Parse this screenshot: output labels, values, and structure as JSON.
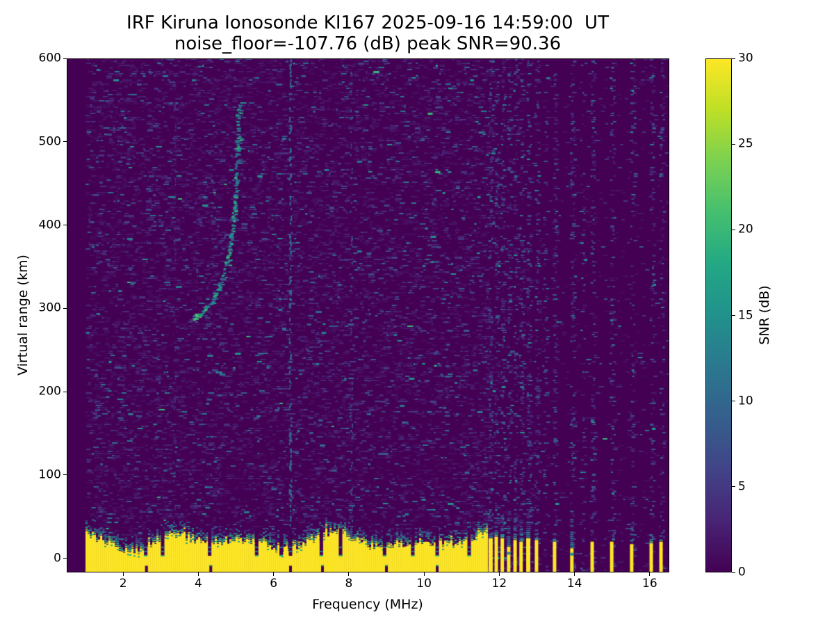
{
  "title": {
    "line1": "IRF Kiruna Ionosonde KI167 2025-09-16 14:59:00  UT",
    "line2": "noise_floor=-107.76 (dB) peak SNR=90.36"
  },
  "axes": {
    "xlabel": "Frequency (MHz)",
    "ylabel": "Virtual range (km)"
  },
  "colorbar": {
    "label": "SNR (dB)",
    "ticks": [
      0,
      5,
      10,
      15,
      20,
      25,
      30
    ],
    "range": [
      0,
      30
    ],
    "colormap": "viridis",
    "stops": [
      [
        "#440154",
        0
      ],
      [
        "#482475",
        0.1
      ],
      [
        "#414487",
        0.2
      ],
      [
        "#355f8d",
        0.3
      ],
      [
        "#2a788e",
        0.4
      ],
      [
        "#21918c",
        0.5
      ],
      [
        "#22a884",
        0.6
      ],
      [
        "#44bf70",
        0.7
      ],
      [
        "#7ad151",
        0.8
      ],
      [
        "#bddf26",
        0.9
      ],
      [
        "#fde725",
        1.0
      ]
    ]
  },
  "chart_data": {
    "type": "heatmap",
    "station": "KI167",
    "timestamp_ut": "2025-09-16 14:59:00",
    "noise_floor_db": -107.76,
    "peak_snr_db": 90.36,
    "x": {
      "label": "Frequency (MHz)",
      "range": [
        0.5,
        16.52
      ],
      "ticks": [
        2,
        4,
        6,
        8,
        10,
        12,
        14,
        16
      ]
    },
    "y": {
      "label": "Virtual range (km)",
      "range": [
        -17,
        600
      ],
      "ticks": [
        0,
        100,
        200,
        300,
        400,
        500,
        600
      ]
    },
    "z": {
      "label": "SNR (dB)",
      "range": [
        0,
        30
      ],
      "colormap": "viridis"
    },
    "background": "#440154",
    "clutter_color": "#fde725",
    "data_start_mhz": 1.0,
    "noise": {
      "stripe_region_start_mhz": 11.68,
      "left_count": 10000,
      "right_count": 800,
      "speckle_palette": [
        [
          "#470d60",
          0.4
        ],
        [
          "#48186a",
          0.22
        ],
        [
          "#482475",
          0.14
        ],
        [
          "#46327e",
          0.09
        ],
        [
          "#414487",
          0.07
        ],
        [
          "#375a8c",
          0.04
        ],
        [
          "#2e6e8e",
          0.02
        ],
        [
          "#2a788e",
          0.012
        ],
        [
          "#21918c",
          0.006
        ],
        [
          "#35b779",
          0.002
        ]
      ],
      "stripe_palette": [
        [
          "#481a6c",
          0.3
        ],
        [
          "#472a7a",
          0.25
        ],
        [
          "#414487",
          0.2
        ],
        [
          "#3b528b",
          0.12
        ],
        [
          "#355f8d",
          0.07
        ],
        [
          "#2a788e",
          0.04
        ],
        [
          "#21918c",
          0.02
        ]
      ],
      "trace_palette": [
        [
          "#2a788e",
          0.3
        ],
        [
          "#21918c",
          0.3
        ],
        [
          "#1fa187",
          0.15
        ],
        [
          "#35b779",
          0.12
        ],
        [
          "#355f8d",
          0.13
        ]
      ],
      "fringe_palettes": [
        [
          [
            "#c2df23",
            0.25
          ],
          [
            "#7ad151",
            0.45
          ],
          [
            "#4ac16d",
            0.3
          ]
        ],
        [
          [
            "#4ac16d",
            0.3
          ],
          [
            "#22a884",
            0.5
          ],
          [
            "#2a788e",
            0.2
          ]
        ],
        [
          [
            "#21918c",
            0.45
          ],
          [
            "#2a788e",
            0.4
          ],
          [
            "#355f8d",
            0.15
          ]
        ],
        [
          [
            "#31688e",
            0.5
          ],
          [
            "#3b528b",
            0.3
          ],
          [
            "#472d7b",
            0.2
          ]
        ]
      ]
    },
    "clutter_band": {
      "f_start": 1.0,
      "f_end": 11.66,
      "top_km_min": 8,
      "top_km_max": 32,
      "fringe_km": 18,
      "notches_mhz": [
        2.6,
        3.05,
        4.3,
        5.55,
        6.2,
        6.45,
        7.27,
        7.78,
        8.95,
        9.7,
        10.35,
        11.2
      ],
      "bottom_gaps_mhz": [
        2.62,
        4.33,
        6.45,
        7.3,
        9.0,
        10.35
      ]
    },
    "echo_trace": {
      "name": "F-layer echo trace",
      "points": [
        [
          3.88,
          287
        ],
        [
          4.02,
          292
        ],
        [
          4.16,
          298
        ],
        [
          4.3,
          306
        ],
        [
          4.44,
          316
        ],
        [
          4.56,
          328
        ],
        [
          4.67,
          342
        ],
        [
          4.77,
          358
        ],
        [
          4.85,
          378
        ],
        [
          4.92,
          402
        ],
        [
          4.97,
          430
        ],
        [
          5.01,
          462
        ],
        [
          5.04,
          496
        ],
        [
          5.06,
          528
        ],
        [
          5.07,
          548
        ]
      ],
      "bright_spots": [
        [
          3.9,
          289
        ],
        [
          3.96,
          292
        ]
      ]
    },
    "rfi_bars": [
      {
        "f": 11.77,
        "yellow_km": 24,
        "cap_km": 34,
        "w": 6
      },
      {
        "f": 11.92,
        "yellow_km": 26,
        "cap_km": 42,
        "w": 5
      },
      {
        "f": 12.08,
        "yellow_km": 24,
        "cap_km": 50,
        "w": 5
      },
      {
        "f": 12.25,
        "yellow_km": 14,
        "cap_km": 55,
        "w": 5,
        "broken": true
      },
      {
        "f": 12.42,
        "yellow_km": 22,
        "cap_km": 60,
        "w": 5
      },
      {
        "f": 12.58,
        "yellow_km": 20,
        "cap_km": 36,
        "w": 5
      },
      {
        "f": 12.77,
        "yellow_km": 24,
        "cap_km": 70,
        "w": 6
      },
      {
        "f": 12.99,
        "yellow_km": 22,
        "cap_km": 44,
        "w": 5
      },
      {
        "f": 13.47,
        "yellow_km": 20,
        "cap_km": 30,
        "w": 5
      },
      {
        "f": 13.93,
        "yellow_km": 12,
        "cap_km": 55,
        "w": 5,
        "broken": true
      },
      {
        "f": 14.47,
        "yellow_km": 20,
        "cap_km": 26,
        "w": 5
      },
      {
        "f": 14.99,
        "yellow_km": 20,
        "cap_km": 22,
        "w": 5
      },
      {
        "f": 15.52,
        "yellow_km": 17,
        "cap_km": 28,
        "w": 5
      },
      {
        "f": 16.04,
        "yellow_km": 18,
        "cap_km": 24,
        "w": 5
      },
      {
        "f": 16.3,
        "yellow_km": 20,
        "cap_km": 30,
        "w": 5
      }
    ],
    "rfi_stripes": [
      {
        "f": 11.7,
        "n": 90
      },
      {
        "f": 11.77,
        "n": 150
      },
      {
        "f": 11.92,
        "n": 150
      },
      {
        "f": 12.08,
        "n": 150
      },
      {
        "f": 12.25,
        "n": 140
      },
      {
        "f": 12.42,
        "n": 140
      },
      {
        "f": 12.58,
        "n": 140
      },
      {
        "f": 12.77,
        "n": 160
      },
      {
        "f": 12.99,
        "n": 140
      },
      {
        "f": 13.2,
        "n": 70
      },
      {
        "f": 13.47,
        "n": 130
      },
      {
        "f": 13.93,
        "n": 130
      },
      {
        "f": 14.2,
        "n": 60
      },
      {
        "f": 14.47,
        "n": 120
      },
      {
        "f": 14.99,
        "n": 120
      },
      {
        "f": 15.52,
        "n": 110
      },
      {
        "f": 16.04,
        "n": 110
      },
      {
        "f": 16.3,
        "n": 100
      }
    ],
    "faint_stripes": [
      {
        "f": 6.43,
        "n": 200,
        "c": "#2e6e8e"
      },
      {
        "f": 8.05,
        "n": 70,
        "c": "#3b528b"
      },
      {
        "f": 3.35,
        "n": 50,
        "c": "#472a7a"
      }
    ]
  }
}
